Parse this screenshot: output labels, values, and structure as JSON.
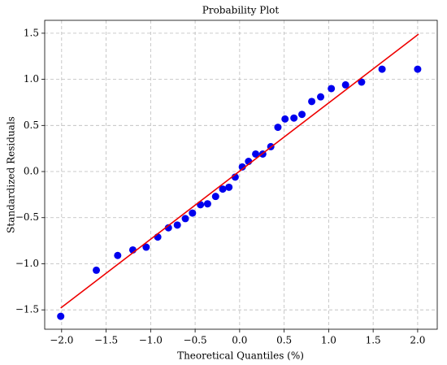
{
  "chart_data": {
    "type": "scatter",
    "title": "Probability Plot",
    "x_label": "Theoretical Quantiles (%)",
    "y_label": "Standardized Residuals",
    "x": [
      -2.01,
      -1.61,
      -1.37,
      -1.2,
      -1.05,
      -0.92,
      -0.8,
      -0.7,
      -0.61,
      -0.53,
      -0.44,
      -0.36,
      -0.27,
      -0.19,
      -0.12,
      -0.05,
      0.03,
      0.1,
      0.18,
      0.26,
      0.35,
      0.43,
      0.51,
      0.61,
      0.7,
      0.81,
      0.91,
      1.03,
      1.19,
      1.37,
      1.6,
      2.0
    ],
    "values": [
      -1.57,
      -1.07,
      -0.91,
      -0.85,
      -0.82,
      -0.71,
      -0.61,
      -0.58,
      -0.51,
      -0.45,
      -0.36,
      -0.35,
      -0.27,
      -0.19,
      -0.17,
      -0.06,
      0.05,
      0.11,
      0.19,
      0.19,
      0.27,
      0.48,
      0.57,
      0.58,
      0.62,
      0.76,
      0.81,
      0.9,
      0.94,
      0.97,
      1.11,
      1.11
    ],
    "color": "#0000ee",
    "fit_line": {
      "x": [
        -2.01,
        2.01
      ],
      "values": [
        -1.48,
        1.49
      ],
      "color": "#ee0000"
    },
    "xlim": [
      -2.19,
      2.22
    ],
    "ylim": [
      -1.71,
      1.64
    ],
    "xticks": [
      {
        "value": -2,
        "label": "−2.0"
      },
      {
        "value": -1.5,
        "label": "−1.5"
      },
      {
        "value": -1,
        "label": "−1.0"
      },
      {
        "value": -0.5,
        "label": "−0.5"
      },
      {
        "value": 0,
        "label": "0.0"
      },
      0.5,
      {
        "value": 1,
        "label": "1.0"
      },
      1.5,
      {
        "value": 2,
        "label": "2.0"
      }
    ],
    "yticks": [
      {
        "value": -1.5,
        "label": "−1.5"
      },
      {
        "value": -1,
        "label": "−1.0"
      },
      {
        "value": -0.5,
        "label": "−0.5"
      },
      {
        "value": 0,
        "label": "0.0"
      },
      0.5,
      {
        "value": 1,
        "label": "1.0"
      },
      1.5
    ],
    "grid": true
  }
}
